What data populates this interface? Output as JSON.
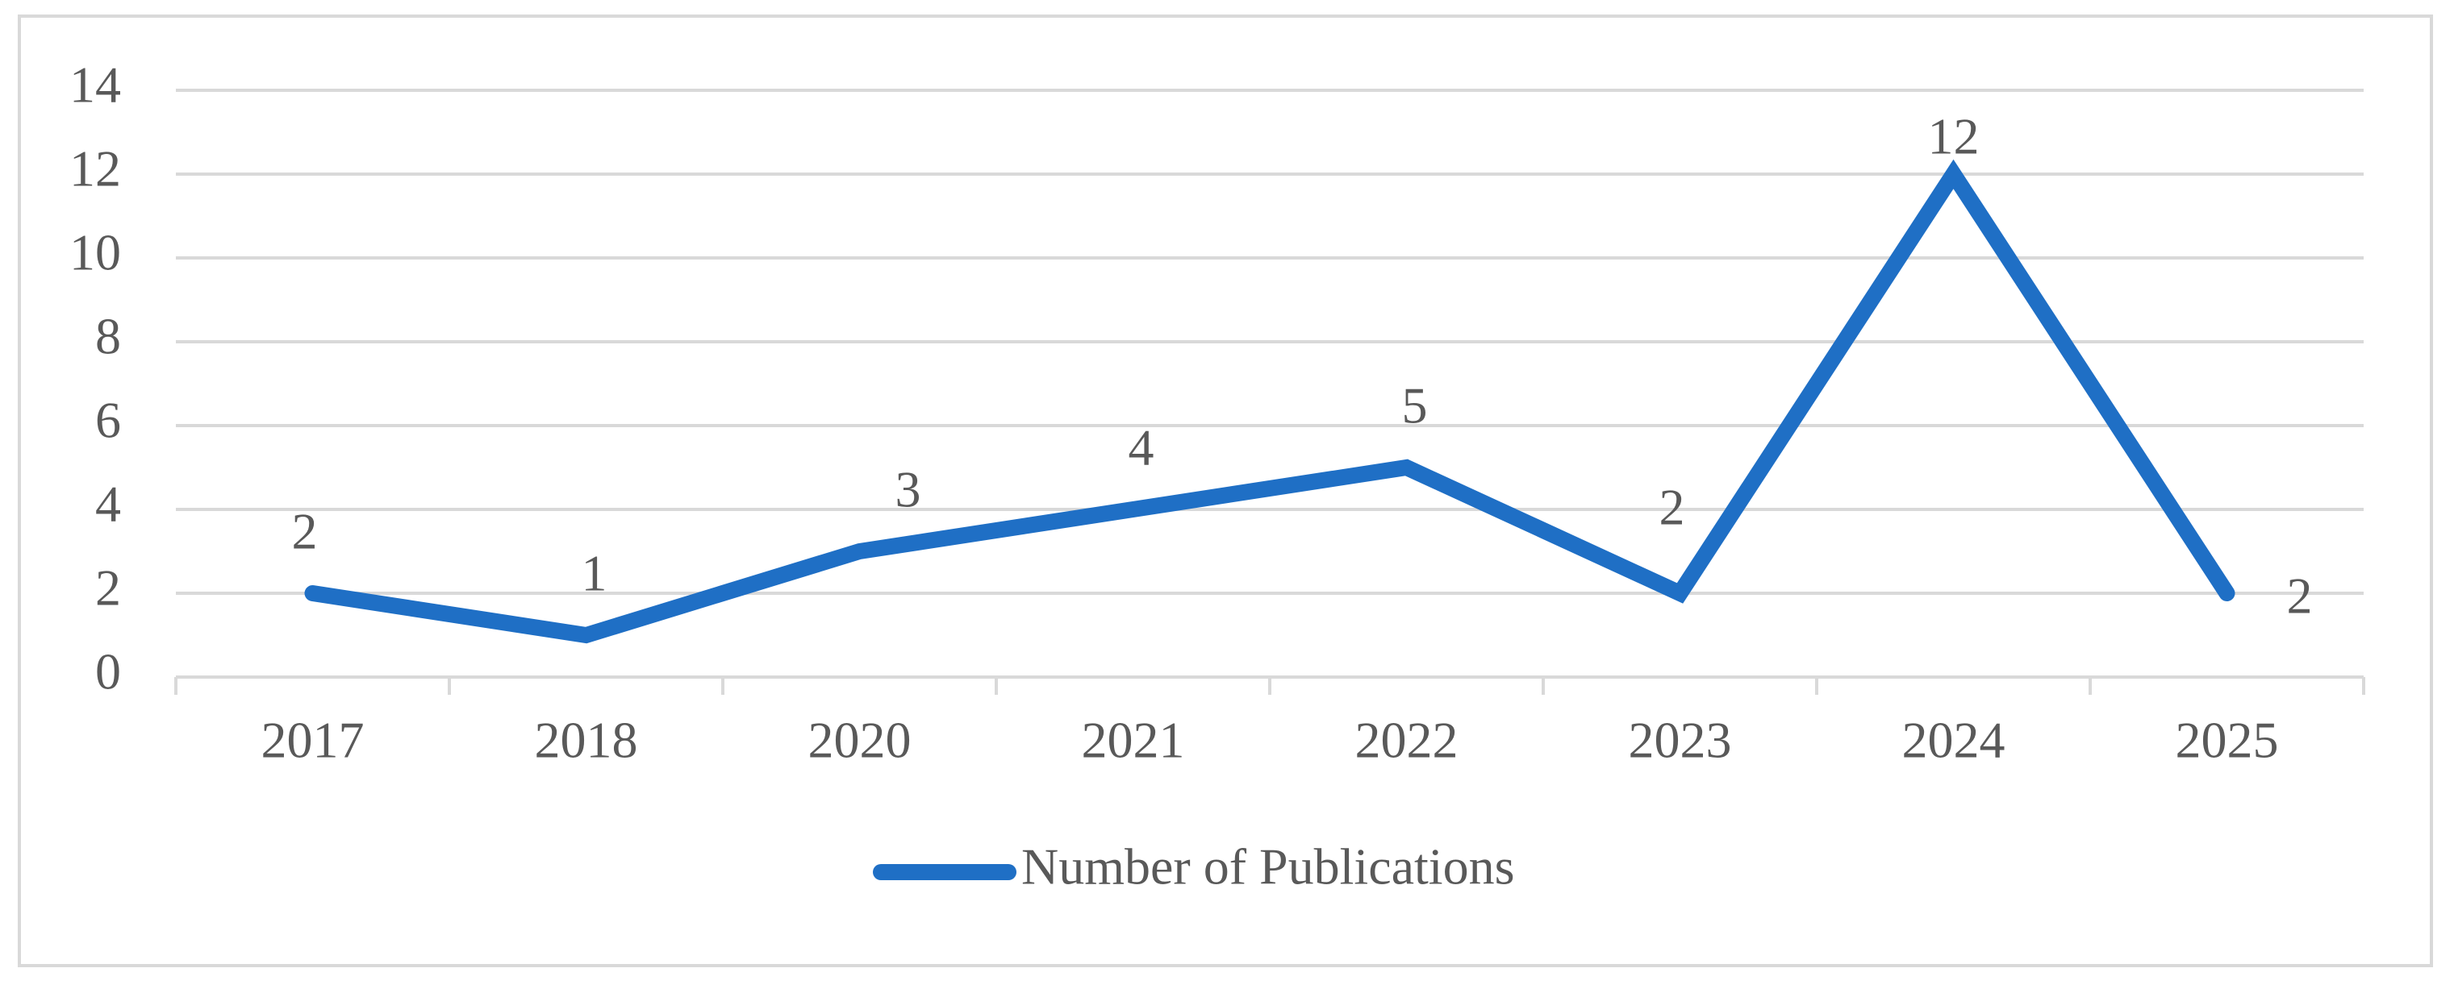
{
  "chart_data": {
    "type": "line",
    "title": "",
    "xlabel": "",
    "ylabel": "",
    "categories": [
      "2017",
      "2018",
      "2020",
      "2021",
      "2022",
      "2023",
      "2024",
      "2025"
    ],
    "series": [
      {
        "name": "Number of Publications",
        "values": [
          2,
          1,
          3,
          4,
          5,
          2,
          12,
          2
        ],
        "color": "#1f6fc5"
      }
    ],
    "data_labels": [
      "2",
      "1",
      "3",
      "4",
      "5",
      "2",
      "12",
      "2"
    ],
    "ylim": [
      0,
      14
    ],
    "y_ticks": [
      "0",
      "2",
      "4",
      "6",
      "8",
      "10",
      "12",
      "14"
    ],
    "grid": true,
    "gridline_color": "#d9d9d9",
    "axis_color": "#d9d9d9",
    "legend_position": "bottom"
  }
}
